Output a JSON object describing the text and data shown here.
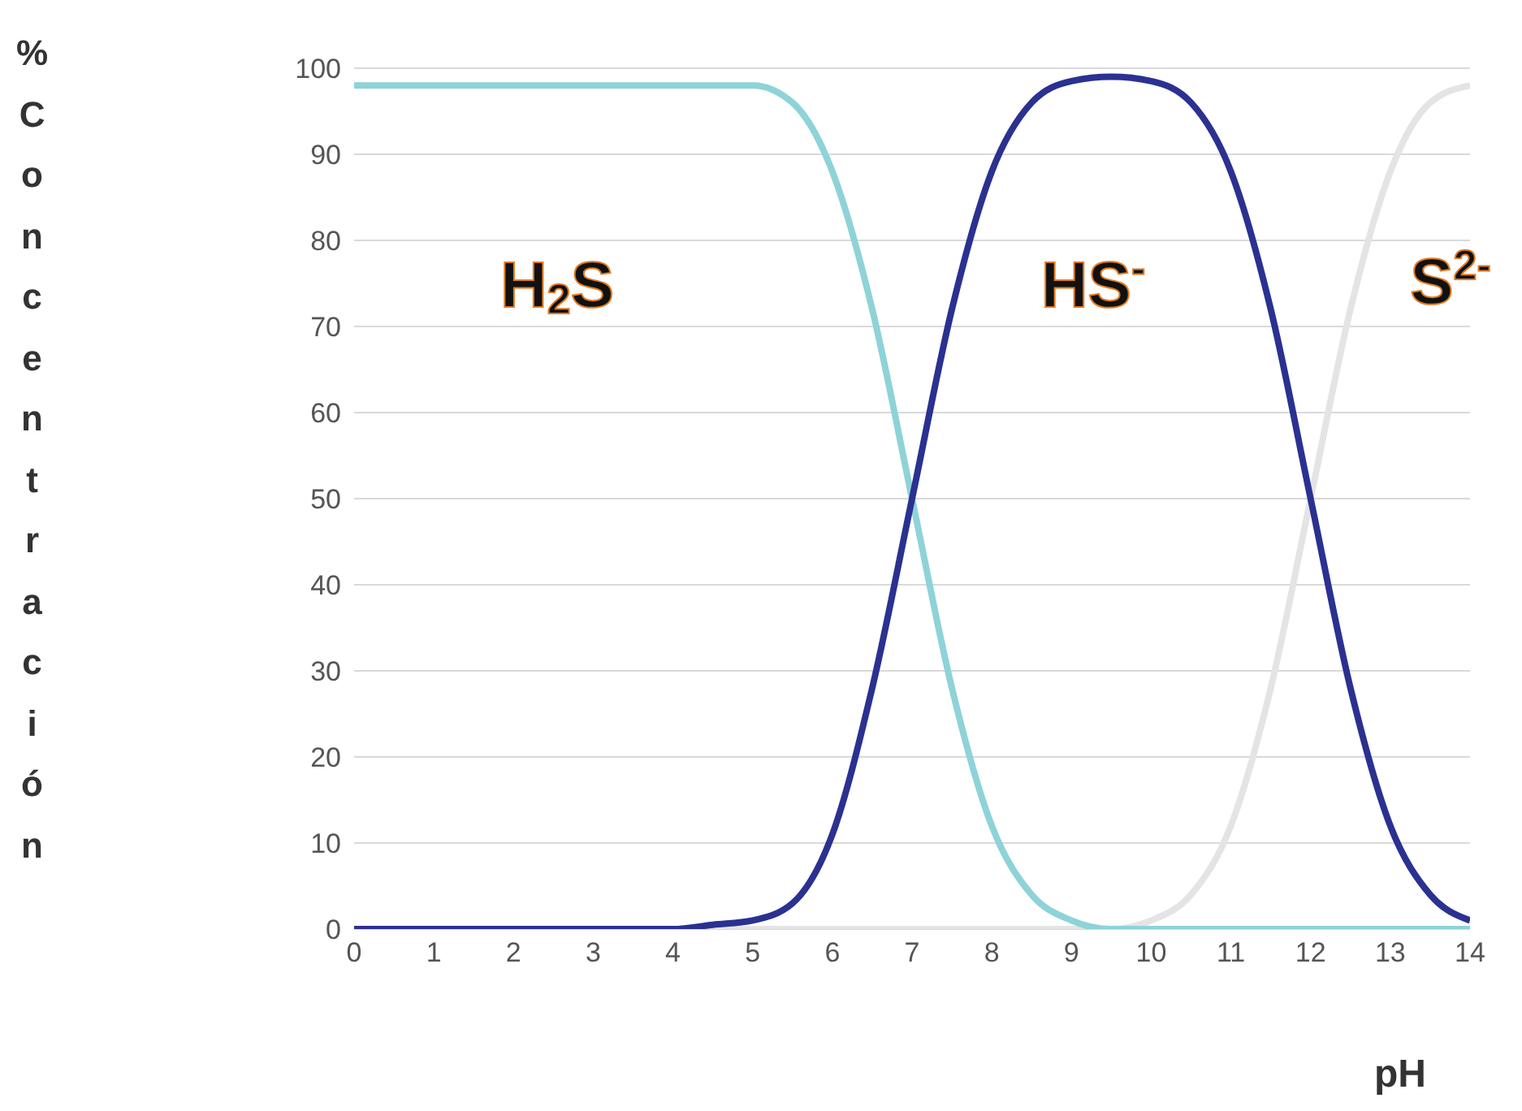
{
  "chart_data": {
    "type": "line",
    "xlabel": "pH",
    "ylabel": "% Concentración",
    "x": [
      0,
      0.5,
      1,
      1.5,
      2,
      2.5,
      3,
      3.5,
      4,
      4.5,
      5,
      5.5,
      6,
      6.5,
      7,
      7.5,
      8,
      8.5,
      9,
      9.5,
      10,
      10.5,
      11,
      11.5,
      12,
      12.5,
      13,
      13.5,
      14
    ],
    "series": [
      {
        "color": "#8ed3d8",
        "values": [
          98,
          98,
          98,
          98,
          98,
          98,
          98,
          98,
          98,
          98,
          98,
          96,
          88,
          72,
          50,
          28,
          12,
          4,
          1,
          0,
          0,
          0,
          0,
          0,
          0,
          0,
          0,
          0,
          0
        ]
      },
      {
        "color": "#2b3190",
        "values": [
          0,
          0,
          0,
          0,
          0,
          0,
          0,
          0,
          0,
          0.5,
          1,
          3,
          11,
          28,
          50,
          72,
          88,
          96,
          98.5,
          99,
          98.5,
          96,
          88,
          72,
          50,
          28,
          12,
          4,
          1
        ]
      },
      {
        "color": "#e4e4e4",
        "values": [
          0,
          0,
          0,
          0,
          0,
          0,
          0,
          0,
          0,
          0,
          0,
          0,
          0,
          0,
          0,
          0,
          0,
          0,
          0,
          0,
          1,
          4,
          12,
          28,
          50,
          72,
          88,
          96,
          98
        ]
      }
    ],
    "xlim": [
      0,
      14
    ],
    "xticks": [
      0,
      1,
      2,
      3,
      4,
      5,
      6,
      7,
      8,
      9,
      10,
      11,
      12,
      13,
      14
    ],
    "ylim": [
      0,
      100
    ],
    "yticks": [
      0,
      10,
      20,
      30,
      40,
      50,
      60,
      70,
      80,
      90,
      100
    ],
    "grid": "y",
    "marker": "none",
    "line_style": "solid",
    "annotations": [
      "H$_{2}$S",
      "HS$^{-}$",
      "S$^{2-}$"
    ]
  }
}
